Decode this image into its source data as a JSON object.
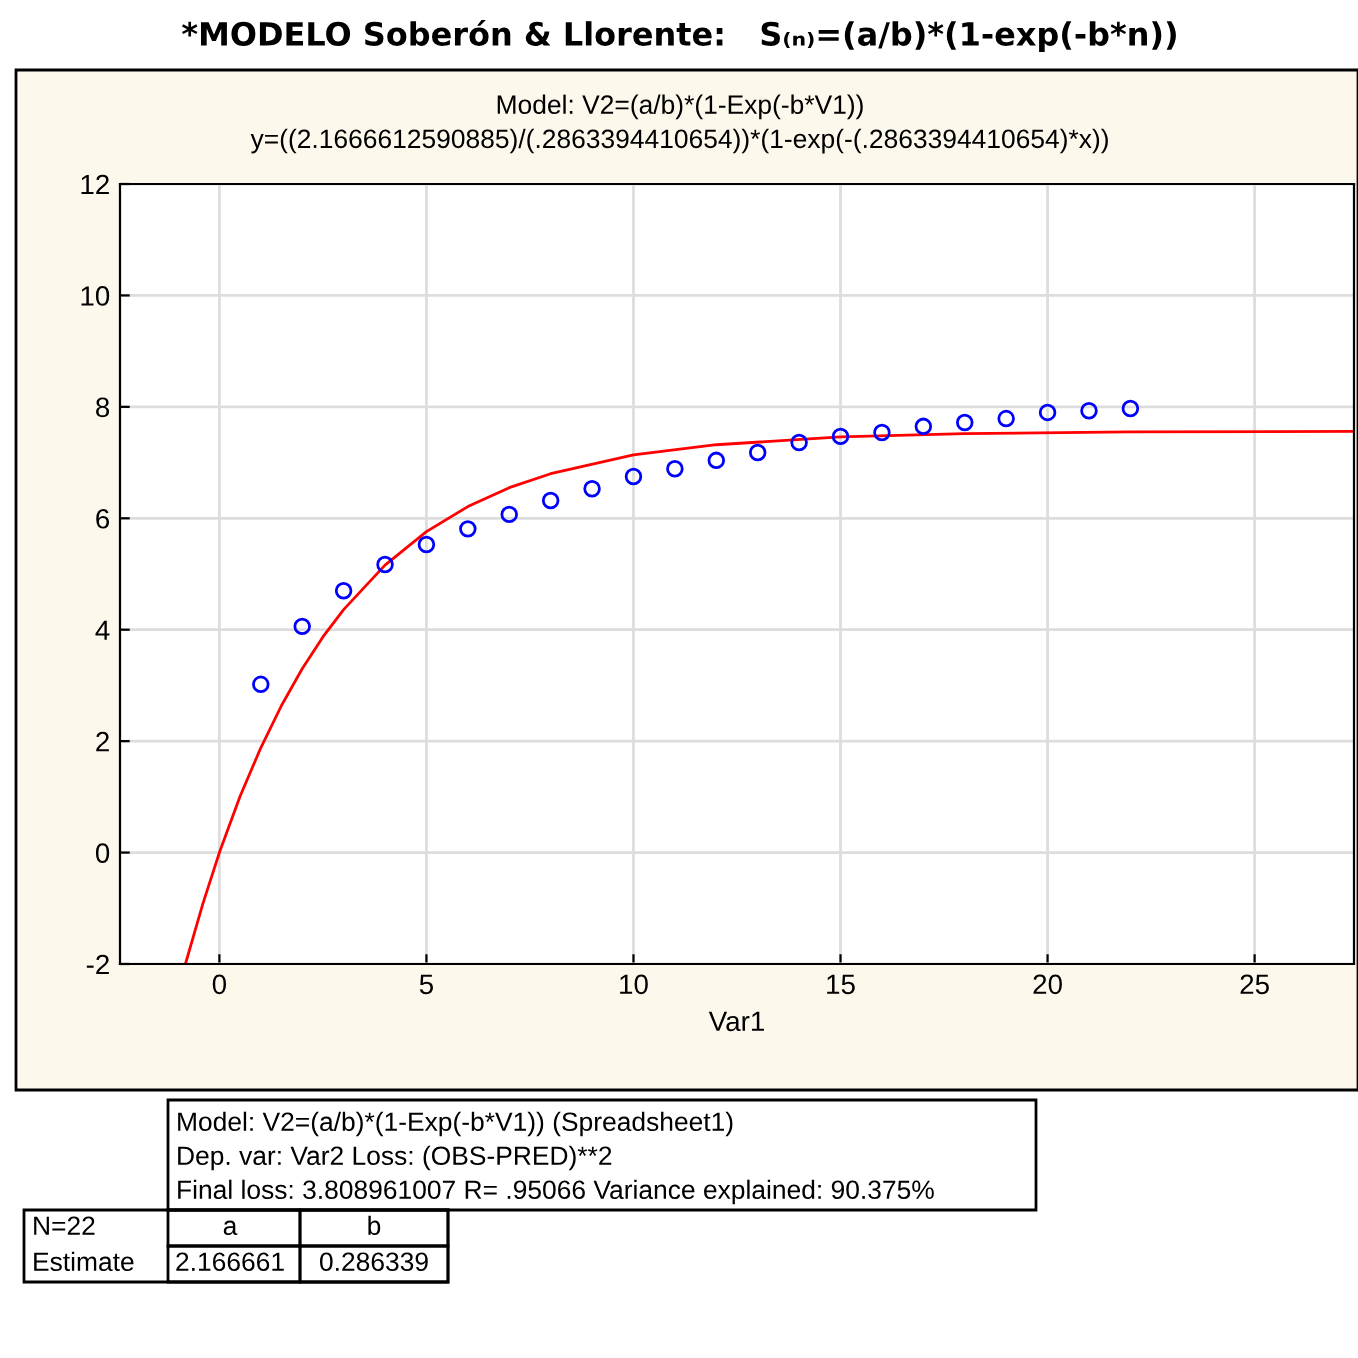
{
  "chart_data": {
    "type": "scatter",
    "title": "*MODELO Soberón & Llorente:   S₍ₙ₎=(a/b)*(1-exp(-b*n))",
    "subtitle": "Model: V2=(a/b)*(1-Exp(-b*V1))\ny=((2.1666612590885)/(.2863394410654))*(1-exp(-(.2863394410654)*x))",
    "xlabel": "Var1",
    "x": [
      1,
      2,
      3,
      4,
      5,
      6,
      7,
      8,
      9,
      10,
      11,
      12,
      13,
      14,
      15,
      16,
      17,
      18,
      19,
      20,
      21,
      22
    ],
    "series": [
      {
        "color": "#0000ff",
        "marker": "circle",
        "values": [
          3.02,
          4.06,
          4.7,
          5.17,
          5.53,
          5.81,
          6.07,
          6.32,
          6.53,
          6.75,
          6.89,
          7.04,
          7.18,
          7.36,
          7.47,
          7.54,
          7.65,
          7.72,
          7.79,
          7.9,
          7.93,
          7.97
        ]
      },
      {
        "type": "line",
        "color": "#ff0000",
        "marker": "none",
        "line_style": "solid",
        "x": [
          -0.82,
          -0.4,
          0,
          0.5,
          1,
          1.5,
          2,
          2.5,
          3,
          4,
          5,
          6,
          7,
          8,
          10,
          12,
          15,
          18,
          22,
          27.4
        ],
        "values": [
          -2.0,
          -0.92,
          0,
          1.01,
          1.88,
          2.64,
          3.3,
          3.87,
          4.36,
          5.16,
          5.76,
          6.21,
          6.55,
          6.8,
          7.14,
          7.32,
          7.46,
          7.52,
          7.55,
          7.56
        ]
      }
    ],
    "xlim": [
      -2.4,
      27.4
    ],
    "xticks": [
      0,
      5,
      10,
      15,
      20,
      25
    ],
    "ylim": [
      -2,
      12
    ],
    "yticks": [
      -2,
      0,
      2,
      4,
      6,
      8,
      10,
      12
    ],
    "grid": true,
    "annotations": [
      "Model: V2=(a/b)*(1-Exp(-b*V1)) (Spreadsheet1)",
      "Dep. var: Var2 Loss: (OBS-PRED)**2",
      "Final loss: 3.808961007 R= .95066 Variance explained: 90.375%",
      "N=22",
      "a",
      "b",
      "Estimate",
      "2.166661",
      "0.286339"
    ]
  }
}
